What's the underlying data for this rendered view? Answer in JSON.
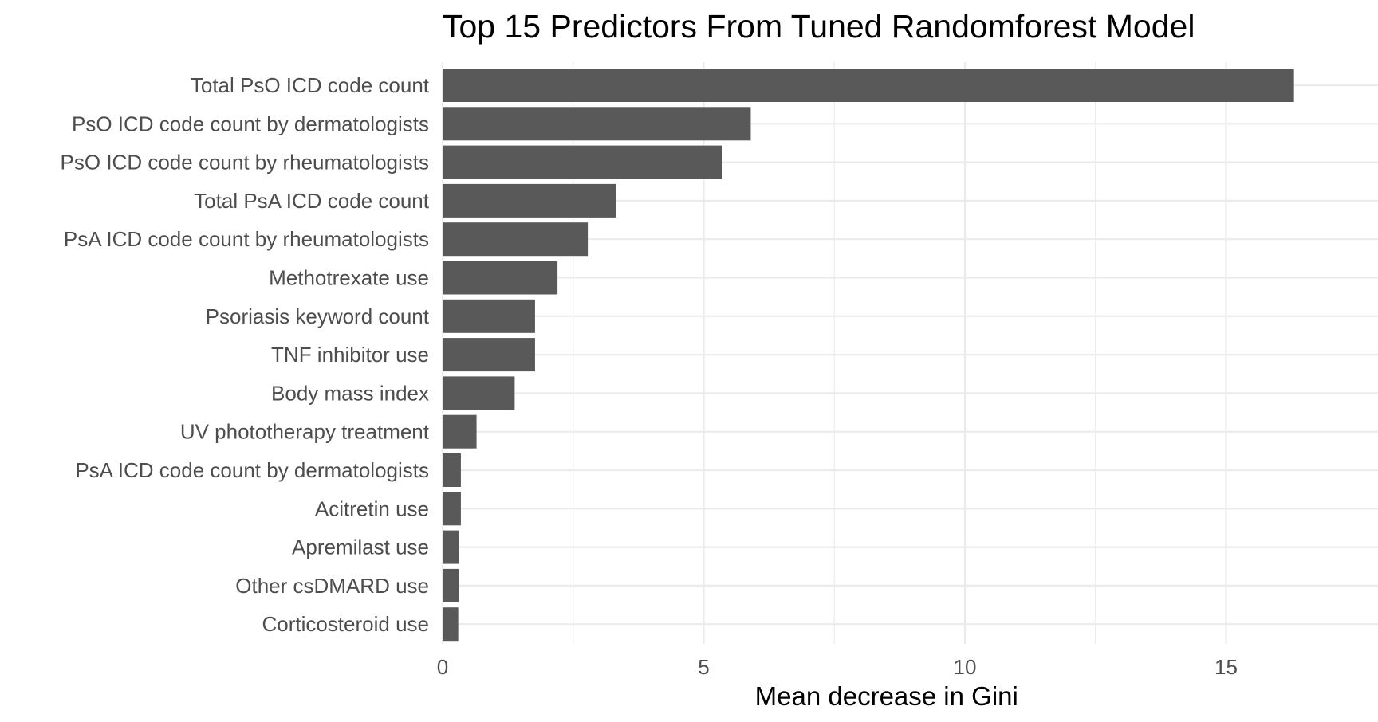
{
  "chart_data": {
    "type": "bar",
    "orientation": "horizontal",
    "title": "Top 15 Predictors From Tuned Randomforest Model",
    "xlabel": "Mean decrease in Gini",
    "ylabel": "",
    "xlim": [
      0,
      17
    ],
    "x_ticks": [
      0,
      5,
      10,
      15
    ],
    "x_tick_labels": [
      "0",
      "5",
      "10",
      "15"
    ],
    "grid": true,
    "legend": "none",
    "bar_color": "#595959",
    "categories": [
      "Total PsO ICD code count",
      "PsO ICD code count by dermatologists",
      "PsO ICD code count by rheumatologists",
      "Total PsA ICD code count",
      "PsA ICD code count by rheumatologists",
      "Methotrexate use",
      "Psoriasis keyword count",
      "TNF inhibitor use",
      "Body mass index",
      "UV phototherapy treatment",
      "PsA ICD code count by dermatologists",
      "Acitretin use",
      "Apremilast use",
      "Other csDMARD use",
      "Corticosteroid use"
    ],
    "values": [
      16.3,
      5.9,
      5.35,
      3.32,
      2.78,
      2.2,
      1.77,
      1.77,
      1.38,
      0.65,
      0.35,
      0.35,
      0.32,
      0.32,
      0.3
    ]
  }
}
